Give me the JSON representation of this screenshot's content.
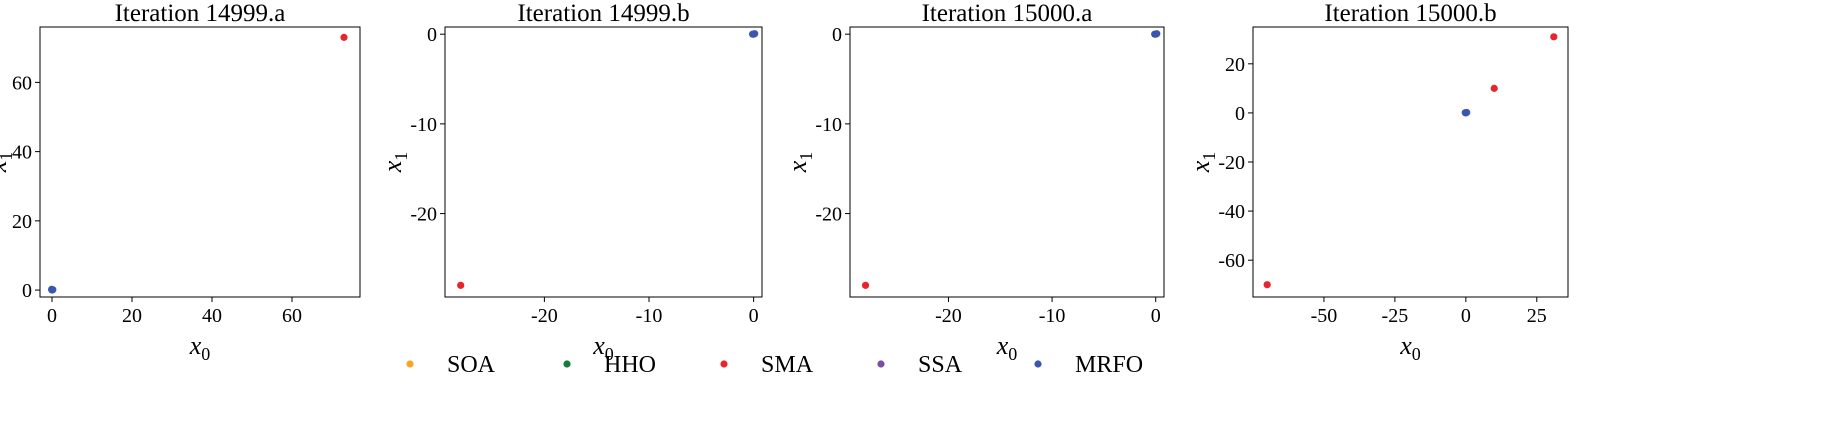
{
  "colors": {
    "SOA": "#f5a623",
    "HHO": "#1a7a3a",
    "SMA": "#e8252d",
    "SSA": "#7b4fa0",
    "MRFO": "#3a56b0"
  },
  "legend": {
    "placement": "bottom-center",
    "entries": [
      "SOA",
      "HHO",
      "SMA",
      "SSA",
      "MRFO"
    ]
  },
  "chart_data": [
    {
      "type": "scatter",
      "title": "Iteration 14999.a",
      "xlabel": "x",
      "xlabel_sub": "0",
      "ylabel": "x",
      "ylabel_sub": "1",
      "xlim": [
        -3,
        77
      ],
      "ylim": [
        -2,
        76
      ],
      "xticks": [
        0,
        20,
        40,
        60
      ],
      "yticks": [
        0,
        20,
        40,
        60
      ],
      "series": [
        {
          "name": "SMA",
          "points": [
            [
              73,
              73
            ]
          ]
        },
        {
          "name": "MRFO",
          "points": [
            [
              0,
              0
            ],
            [
              0.2,
              0.1
            ],
            [
              -0.1,
              0.2
            ]
          ]
        }
      ]
    },
    {
      "type": "scatter",
      "title": "Iteration 14999.b",
      "xlabel": "x",
      "xlabel_sub": "0",
      "ylabel": "x",
      "ylabel_sub": "1",
      "xlim": [
        -29.5,
        0.8
      ],
      "ylim": [
        -29.3,
        0.8
      ],
      "xticks": [
        -20,
        -10,
        0
      ],
      "yticks": [
        -20,
        -10,
        0
      ],
      "series": [
        {
          "name": "SMA",
          "points": [
            [
              -28,
              -28
            ]
          ]
        },
        {
          "name": "MRFO",
          "points": [
            [
              0,
              0
            ],
            [
              0.1,
              0.05
            ],
            [
              -0.1,
              0.0
            ]
          ]
        }
      ]
    },
    {
      "type": "scatter",
      "title": "Iteration 15000.a",
      "xlabel": "x",
      "xlabel_sub": "0",
      "ylabel": "x",
      "ylabel_sub": "1",
      "xlim": [
        -29.5,
        0.8
      ],
      "ylim": [
        -29.3,
        0.8
      ],
      "xticks": [
        -20,
        -10,
        0
      ],
      "yticks": [
        -20,
        -10,
        0
      ],
      "series": [
        {
          "name": "SMA",
          "points": [
            [
              -28,
              -28
            ]
          ]
        },
        {
          "name": "MRFO",
          "points": [
            [
              0,
              0
            ],
            [
              0.1,
              0.05
            ],
            [
              -0.1,
              0.0
            ]
          ]
        }
      ]
    },
    {
      "type": "scatter",
      "title": "Iteration 15000.b",
      "xlabel": "x",
      "xlabel_sub": "0",
      "ylabel": "x",
      "ylabel_sub": "1",
      "xlim": [
        -75,
        36
      ],
      "ylim": [
        -75,
        35
      ],
      "xticks": [
        -50,
        -25,
        0,
        25
      ],
      "yticks": [
        -60,
        -40,
        -20,
        0,
        20
      ],
      "series": [
        {
          "name": "SMA",
          "points": [
            [
              31,
              31
            ],
            [
              10,
              10
            ],
            [
              -70,
              -70
            ]
          ]
        },
        {
          "name": "MRFO",
          "points": [
            [
              0,
              0
            ],
            [
              0.3,
              0.2
            ],
            [
              -0.2,
              0.1
            ]
          ]
        }
      ]
    }
  ]
}
